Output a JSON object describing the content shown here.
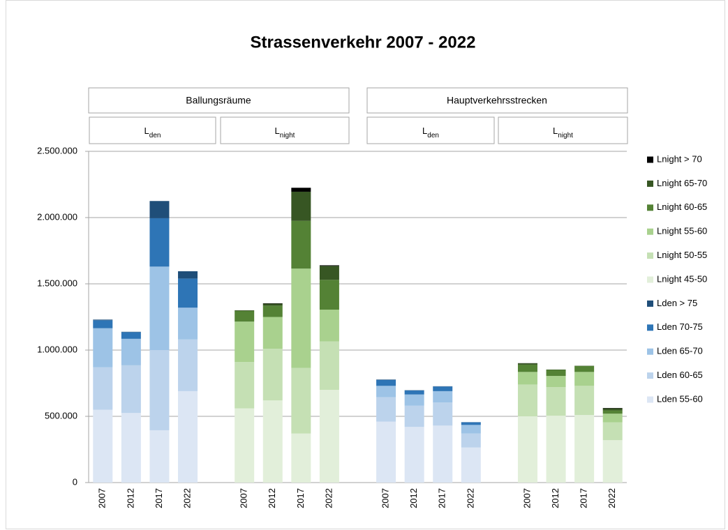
{
  "chart_data": {
    "type": "bar",
    "stacked": true,
    "title": "Strassenverkehr 2007 - 2022",
    "groups": [
      "Ballungsräume",
      "Hauptverkehrsstrecken"
    ],
    "sub_groups": [
      {
        "main": "L",
        "sub": "den"
      },
      {
        "main": "L",
        "sub": "night"
      },
      {
        "main": "L",
        "sub": "den"
      },
      {
        "main": "L",
        "sub": "night"
      }
    ],
    "categories": [
      "2007",
      "2012",
      "2017",
      "2022",
      null,
      "2007",
      "2012",
      "2017",
      "2022",
      null,
      "2007",
      "2012",
      "2017",
      "2022",
      null,
      "2007",
      "2012",
      "2017",
      "2022"
    ],
    "series": [
      {
        "name": "Lden 55-60",
        "color": "#dce6f4",
        "values": [
          550000,
          525000,
          395000,
          690000,
          null,
          null,
          null,
          null,
          null,
          null,
          460000,
          420000,
          430000,
          265000,
          null,
          null,
          null,
          null,
          null
        ]
      },
      {
        "name": "Lden 60-65",
        "color": "#bcd3ec",
        "values": [
          320000,
          360000,
          605000,
          390000,
          null,
          null,
          null,
          null,
          null,
          null,
          185000,
          160000,
          175000,
          105000,
          null,
          null,
          null,
          null,
          null
        ]
      },
      {
        "name": "Lden 65-70",
        "color": "#9dc3e6",
        "values": [
          295000,
          200000,
          630000,
          240000,
          null,
          null,
          null,
          null,
          null,
          null,
          85000,
          85000,
          85000,
          65000,
          null,
          null,
          null,
          null,
          null
        ]
      },
      {
        "name": "Lden 70-75",
        "color": "#2e75b6",
        "values": [
          60000,
          50000,
          365000,
          220000,
          null,
          null,
          null,
          null,
          null,
          null,
          45000,
          30000,
          35000,
          20000,
          null,
          null,
          null,
          null,
          null
        ]
      },
      {
        "name": "Lden > 75",
        "color": "#1f4e79",
        "values": [
          5000,
          3000,
          130000,
          55000,
          null,
          null,
          null,
          null,
          null,
          null,
          3000,
          2000,
          2000,
          1000,
          null,
          null,
          null,
          null,
          null
        ]
      },
      {
        "name": "Lnight 45-50",
        "color": "#e2efda",
        "values": [
          null,
          null,
          null,
          null,
          null,
          560000,
          620000,
          370000,
          700000,
          null,
          null,
          null,
          null,
          null,
          null,
          500000,
          505000,
          510000,
          320000
        ]
      },
      {
        "name": "Lnight 50-55",
        "color": "#c5e0b4",
        "values": [
          null,
          null,
          null,
          null,
          null,
          350000,
          390000,
          495000,
          365000,
          null,
          null,
          null,
          null,
          null,
          null,
          240000,
          215000,
          220000,
          135000
        ]
      },
      {
        "name": "Lnight 55-60",
        "color": "#a9d18e",
        "values": [
          null,
          null,
          null,
          null,
          null,
          305000,
          240000,
          750000,
          240000,
          null,
          null,
          null,
          null,
          null,
          null,
          95000,
          85000,
          105000,
          65000
        ]
      },
      {
        "name": "Lnight 60-65",
        "color": "#548235",
        "values": [
          null,
          null,
          null,
          null,
          null,
          80000,
          85000,
          360000,
          225000,
          null,
          null,
          null,
          null,
          null,
          null,
          55000,
          45000,
          45000,
          25000
        ]
      },
      {
        "name": "Lnight 65-70",
        "color": "#375623",
        "values": [
          null,
          null,
          null,
          null,
          null,
          5000,
          15000,
          220000,
          105000,
          null,
          null,
          null,
          null,
          null,
          null,
          10000,
          3000,
          2000,
          15000
        ]
      },
      {
        "name": "Lnight > 70",
        "color": "#000000",
        "values": [
          null,
          null,
          null,
          null,
          null,
          0,
          3000,
          30000,
          5000,
          null,
          null,
          null,
          null,
          null,
          null,
          1000,
          0,
          0,
          3000
        ]
      }
    ],
    "ylim": [
      0,
      2500000
    ],
    "yticks": [
      0,
      {
        "value": 500000,
        "label": "500.000"
      },
      {
        "value": 1000000,
        "label": "1.000.000"
      },
      {
        "value": 1500000,
        "label": "1.500.000"
      },
      {
        "value": 2000000,
        "label": "2.000.000"
      },
      {
        "value": 2500000,
        "label": "2.500.000"
      }
    ],
    "grid": true,
    "legend": "right"
  }
}
